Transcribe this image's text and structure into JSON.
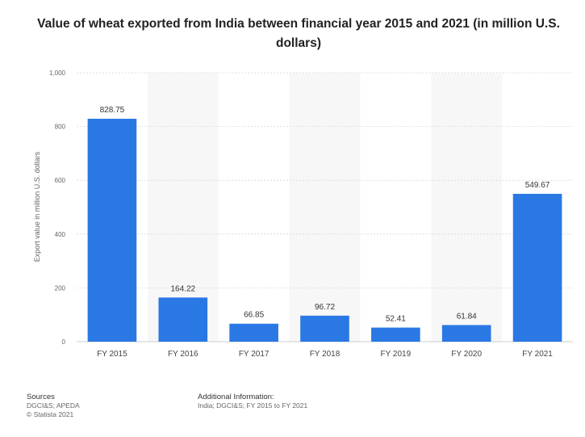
{
  "chart_data": {
    "type": "bar",
    "title": "Value of wheat exported from India between financial year 2015 and 2021 (in million U.S. dollars)",
    "ylabel": "Export value in million U.S. dollars",
    "xlabel": "",
    "categories": [
      "FY 2015",
      "FY 2016",
      "FY 2017",
      "FY 2018",
      "FY 2019",
      "FY 2020",
      "FY 2021"
    ],
    "values": [
      828.75,
      164.22,
      66.85,
      96.72,
      52.41,
      61.84,
      549.67
    ],
    "value_labels": [
      "828.75",
      "164.22",
      "66.85",
      "96.72",
      "52.41",
      "61.84",
      "549.67"
    ],
    "ylim": [
      0,
      1000
    ],
    "yticks": [
      0,
      200,
      400,
      600,
      800,
      1000
    ],
    "ytick_labels": [
      "0",
      "200",
      "400",
      "600",
      "800",
      "1,000"
    ],
    "grid": true,
    "bar_color": "#2a78e4"
  },
  "footer": {
    "sources_heading": "Sources",
    "sources_line1": "DGCI&S; APEDA",
    "sources_line2": "© Statista 2021",
    "additional_heading": "Additional Information:",
    "additional_text": "India; DGCI&S; FY 2015 to FY 2021"
  }
}
